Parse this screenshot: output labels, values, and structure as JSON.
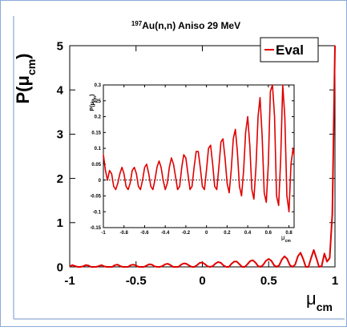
{
  "chart_data": [
    {
      "type": "line",
      "title_prefix": "197",
      "title_main": "Au(n,n) Aniso 29 MeV",
      "xlabel": "μ",
      "xlabel_sub": "cm",
      "ylabel": "P(μ",
      "ylabel_sub": "cm",
      "ylabel_close": ")",
      "xlim": [
        -1,
        1
      ],
      "ylim": [
        0,
        5
      ],
      "x_ticks": [
        "-1",
        "-0.5",
        "0",
        "0.5",
        "1"
      ],
      "y_ticks": [
        "0",
        "1",
        "2",
        "3",
        "4",
        "5"
      ],
      "reference_line": 0,
      "series": [
        {
          "name": "Eval",
          "color": "#e00000",
          "x": [
            -1.0,
            -0.98,
            -0.96,
            -0.94,
            -0.92,
            -0.9,
            -0.88,
            -0.86,
            -0.84,
            -0.82,
            -0.8,
            -0.78,
            -0.76,
            -0.74,
            -0.72,
            -0.7,
            -0.68,
            -0.66,
            -0.64,
            -0.62,
            -0.6,
            -0.58,
            -0.56,
            -0.54,
            -0.52,
            -0.5,
            -0.48,
            -0.46,
            -0.44,
            -0.42,
            -0.4,
            -0.38,
            -0.36,
            -0.34,
            -0.32,
            -0.3,
            -0.28,
            -0.26,
            -0.24,
            -0.22,
            -0.2,
            -0.18,
            -0.16,
            -0.14,
            -0.12,
            -0.1,
            -0.08,
            -0.06,
            -0.04,
            -0.02,
            0.0,
            0.02,
            0.04,
            0.06,
            0.08,
            0.1,
            0.12,
            0.14,
            0.16,
            0.18,
            0.2,
            0.22,
            0.24,
            0.26,
            0.28,
            0.3,
            0.32,
            0.34,
            0.36,
            0.38,
            0.4,
            0.42,
            0.44,
            0.46,
            0.48,
            0.5,
            0.52,
            0.54,
            0.56,
            0.58,
            0.6,
            0.62,
            0.64,
            0.66,
            0.68,
            0.7,
            0.72,
            0.74,
            0.76,
            0.78,
            0.8,
            0.82,
            0.84,
            0.86,
            0.88,
            0.9,
            0.92,
            0.94,
            0.96,
            0.98,
            1.0
          ],
          "y": [
            0.01,
            0.04,
            0.02,
            -0.02,
            -0.03,
            0.01,
            0.04,
            0.03,
            0.0,
            -0.03,
            -0.02,
            0.02,
            0.04,
            0.01,
            -0.02,
            -0.03,
            0.0,
            0.04,
            0.05,
            0.02,
            -0.02,
            -0.03,
            0.0,
            0.04,
            0.05,
            0.03,
            -0.01,
            -0.03,
            -0.01,
            0.03,
            0.06,
            0.05,
            0.01,
            -0.02,
            -0.02,
            0.02,
            0.06,
            0.07,
            0.04,
            0.0,
            -0.02,
            0.0,
            0.05,
            0.08,
            0.07,
            0.03,
            -0.01,
            -0.01,
            0.04,
            0.09,
            0.1,
            0.06,
            0.01,
            -0.01,
            0.02,
            0.08,
            0.11,
            0.09,
            0.03,
            -0.01,
            0.0,
            0.07,
            0.12,
            0.12,
            0.06,
            0.0,
            -0.01,
            0.06,
            0.13,
            0.15,
            0.1,
            0.02,
            -0.02,
            0.05,
            0.14,
            0.18,
            0.14,
            0.04,
            -0.03,
            0.04,
            0.17,
            0.24,
            0.18,
            0.04,
            -0.04,
            0.05,
            0.24,
            0.32,
            0.18,
            -0.02,
            -0.02,
            0.2,
            0.38,
            0.2,
            -0.04,
            0.02,
            0.3,
            0.12,
            0.2,
            1.2,
            5.0
          ]
        }
      ]
    },
    {
      "type": "line",
      "inset": true,
      "xlabel": "μ",
      "xlabel_sub": "cm",
      "ylabel": "P(μ",
      "ylabel_sub": "cm",
      "ylabel_close": ")",
      "xlim": [
        -1,
        0.85
      ],
      "ylim": [
        -0.15,
        0.3
      ],
      "x_ticks": [
        "-1",
        "-0.8",
        "-0.6",
        "-0.4",
        "-0.2",
        "0",
        "0.2",
        "0.4",
        "0.6",
        "0.8"
      ],
      "y_ticks": [
        "-0.15",
        "-0.1",
        "-0.05",
        "0",
        "0.05",
        "0.1",
        "0.15",
        "0.2",
        "0.25",
        "0.3"
      ],
      "reference_line": 0,
      "series": [
        {
          "color": "#e00000",
          "x": [
            -1.0,
            -0.98,
            -0.96,
            -0.94,
            -0.92,
            -0.9,
            -0.88,
            -0.86,
            -0.84,
            -0.82,
            -0.8,
            -0.78,
            -0.76,
            -0.74,
            -0.72,
            -0.7,
            -0.68,
            -0.66,
            -0.64,
            -0.62,
            -0.6,
            -0.58,
            -0.56,
            -0.54,
            -0.52,
            -0.5,
            -0.48,
            -0.46,
            -0.44,
            -0.42,
            -0.4,
            -0.38,
            -0.36,
            -0.34,
            -0.32,
            -0.3,
            -0.28,
            -0.26,
            -0.24,
            -0.22,
            -0.2,
            -0.18,
            -0.16,
            -0.14,
            -0.12,
            -0.1,
            -0.08,
            -0.06,
            -0.04,
            -0.02,
            0.0,
            0.02,
            0.04,
            0.06,
            0.08,
            0.1,
            0.12,
            0.14,
            0.16,
            0.18,
            0.2,
            0.22,
            0.24,
            0.26,
            0.28,
            0.3,
            0.32,
            0.34,
            0.36,
            0.38,
            0.4,
            0.42,
            0.44,
            0.46,
            0.48,
            0.5,
            0.52,
            0.54,
            0.56,
            0.58,
            0.6,
            0.62,
            0.64,
            0.66,
            0.68,
            0.7,
            0.72,
            0.74,
            0.76,
            0.78,
            0.8,
            0.82,
            0.84,
            0.85
          ],
          "y": [
            0.08,
            0.03,
            0.0,
            0.03,
            0.02,
            -0.02,
            -0.03,
            -0.01,
            0.02,
            0.04,
            0.02,
            -0.02,
            -0.03,
            -0.01,
            0.03,
            0.04,
            0.02,
            -0.02,
            -0.03,
            0.0,
            0.04,
            0.05,
            0.02,
            -0.02,
            -0.03,
            0.0,
            0.04,
            0.06,
            0.04,
            0.0,
            -0.03,
            -0.01,
            0.04,
            0.07,
            0.05,
            0.01,
            -0.03,
            -0.02,
            0.04,
            0.08,
            0.07,
            0.02,
            -0.03,
            -0.02,
            0.04,
            0.09,
            0.09,
            0.04,
            -0.02,
            -0.03,
            0.03,
            0.1,
            0.11,
            0.05,
            -0.02,
            -0.03,
            0.04,
            0.12,
            0.13,
            0.07,
            -0.01,
            -0.04,
            0.03,
            0.13,
            0.16,
            0.09,
            -0.02,
            -0.05,
            0.03,
            0.15,
            0.2,
            0.11,
            -0.03,
            -0.06,
            0.04,
            0.2,
            0.26,
            0.14,
            -0.04,
            -0.07,
            0.05,
            0.28,
            0.35,
            0.2,
            -0.05,
            -0.08,
            0.07,
            0.3,
            0.2,
            -0.05,
            -0.1,
            0.05,
            0.1,
            0.08
          ]
        }
      ]
    }
  ],
  "legend": {
    "label": "Eval",
    "color": "#e00000"
  },
  "frame_color": "#8aa9d6"
}
